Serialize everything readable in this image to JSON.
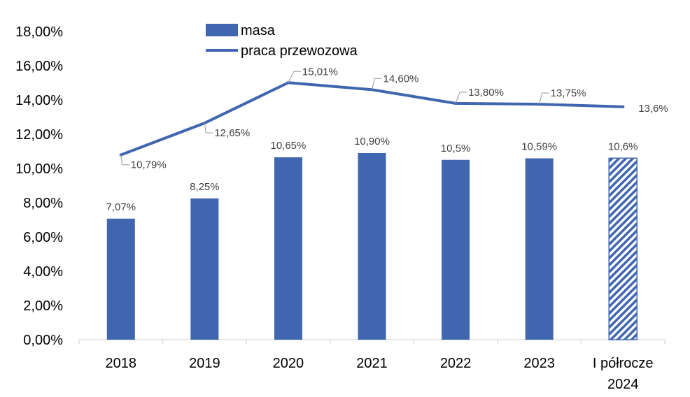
{
  "chart_data": {
    "type": "bar",
    "categories": [
      "2018",
      "2019",
      "2020",
      "2021",
      "2022",
      "2023",
      "I półrocze 2024"
    ],
    "category_lines": [
      [
        "2018"
      ],
      [
        "2019"
      ],
      [
        "2020"
      ],
      [
        "2021"
      ],
      [
        "2022"
      ],
      [
        "2023"
      ],
      [
        "I półrocze",
        "2024"
      ]
    ],
    "ylim": [
      0,
      18
    ],
    "yticks": [
      0,
      2,
      4,
      6,
      8,
      10,
      12,
      14,
      16,
      18
    ],
    "ytick_labels": [
      "0,00%",
      "2,00%",
      "4,00%",
      "6,00%",
      "8,00%",
      "10,00%",
      "12,00%",
      "14,00%",
      "16,00%",
      "18,00%"
    ],
    "grid": false,
    "legend": {
      "position": "top",
      "items": [
        "masa",
        "praca przewozowa"
      ]
    },
    "series": [
      {
        "name": "masa",
        "type": "bar",
        "color": "#4066B0",
        "values": [
          7.07,
          8.25,
          10.65,
          10.9,
          10.5,
          10.59,
          10.6
        ],
        "labels": [
          "7,07%",
          "8,25%",
          "10,65%",
          "10,90%",
          "10,5%",
          "10,59%",
          "10,6%"
        ],
        "hatched": [
          false,
          false,
          false,
          false,
          false,
          false,
          true
        ]
      },
      {
        "name": "praca przewozowa",
        "type": "line",
        "color": "#4066B0",
        "values": [
          10.79,
          12.65,
          15.01,
          14.6,
          13.8,
          13.75,
          13.6
        ],
        "labels": [
          "10,79%",
          "12,65%",
          "15,01%",
          "14,60%",
          "13,80%",
          "13,75%",
          "13,6%"
        ]
      }
    ]
  }
}
